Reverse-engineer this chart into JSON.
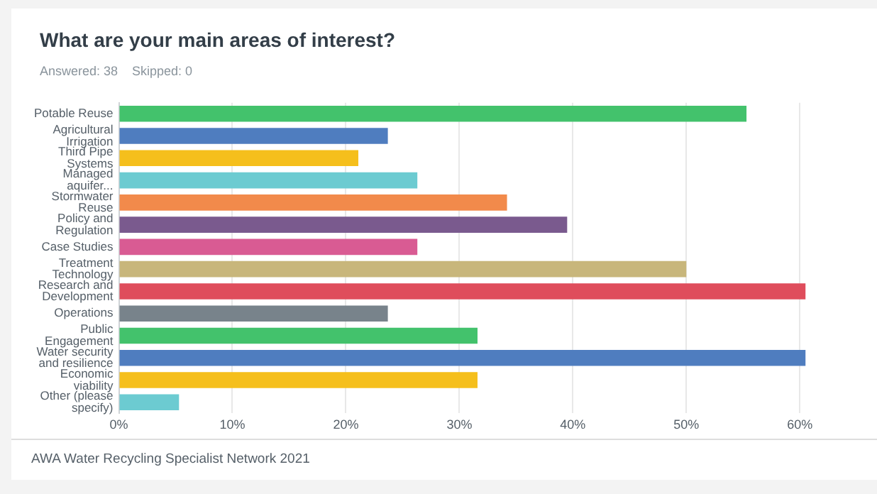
{
  "chart_data": {
    "type": "bar",
    "orientation": "horizontal",
    "title": "What are your main areas of interest?",
    "subtitle": "Answered: 38    Skipped: 0",
    "categories": [
      "Potable Reuse",
      "Agricultural Irrigation",
      "Third Pipe Systems",
      "Managed aquifer...",
      "Stormwater Reuse",
      "Policy and Regulation",
      "Case Studies",
      "Treatment Technology",
      "Research and Development",
      "Operations",
      "Public Engagement",
      "Water security and resilience",
      "Economic viability",
      "Other (please specify)"
    ],
    "values": [
      55.3,
      23.7,
      21.1,
      26.3,
      34.2,
      39.5,
      26.3,
      50,
      60.5,
      23.7,
      31.6,
      60.5,
      31.6,
      5.3
    ],
    "colors": [
      "#43c26c",
      "#4f7dbf",
      "#f5bf1c",
      "#6ccbd1",
      "#f28a4b",
      "#7a5a8e",
      "#d95b93",
      "#c8b67b",
      "#df4d5c",
      "#78838b",
      "#43c26c",
      "#4f7dbf",
      "#f5bf1c",
      "#6ccbd1"
    ],
    "xlim": [
      0,
      66.8
    ],
    "xticks": [
      {
        "value": 0,
        "label": "0%"
      },
      {
        "value": 10,
        "label": "10%"
      },
      {
        "value": 20,
        "label": "20%"
      },
      {
        "value": 30,
        "label": "30%"
      },
      {
        "value": 40,
        "label": "40%"
      },
      {
        "value": 50,
        "label": "50%"
      },
      {
        "value": 60,
        "label": "60%"
      }
    ],
    "grid": "x",
    "legend": false,
    "annotations": [
      "AWA Water Recycling Specialist Network 2021"
    ]
  }
}
